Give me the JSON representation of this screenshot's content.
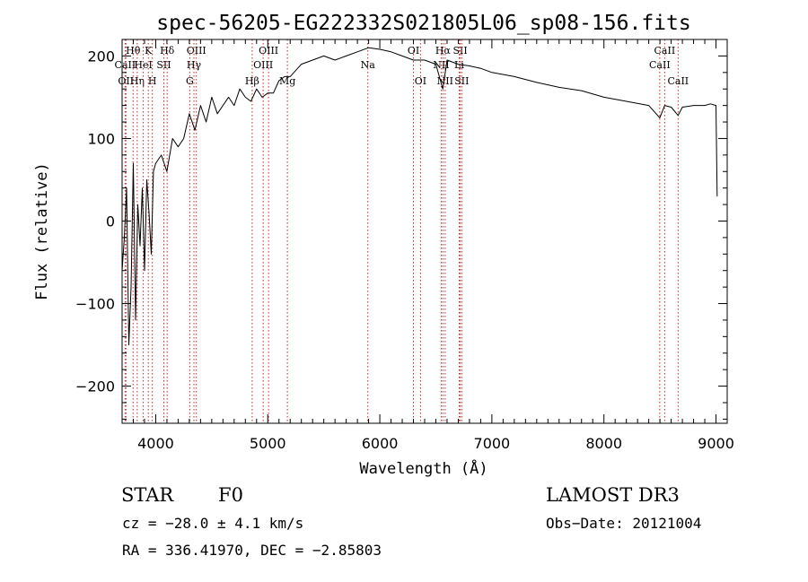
{
  "chart_data": {
    "type": "line",
    "title": "spec-56205-EG222332S021805L06_sp08-156.fits",
    "xlabel": "Wavelength (Å)",
    "ylabel": "Flux (relative)",
    "xlim": [
      3700,
      9100
    ],
    "ylim": [
      -245,
      220
    ],
    "xticks": [
      4000,
      5000,
      6000,
      7000,
      8000,
      9000
    ],
    "yticks": [
      -200,
      -100,
      0,
      100,
      200
    ],
    "series": [
      {
        "name": "flux",
        "color": "#000000",
        "x": [
          3700,
          3720,
          3740,
          3760,
          3780,
          3800,
          3820,
          3840,
          3860,
          3880,
          3900,
          3920,
          3940,
          3960,
          3980,
          4000,
          4050,
          4100,
          4150,
          4200,
          4250,
          4300,
          4350,
          4400,
          4450,
          4500,
          4550,
          4600,
          4650,
          4700,
          4750,
          4800,
          4850,
          4900,
          4950,
          5000,
          5050,
          5100,
          5150,
          5200,
          5300,
          5400,
          5500,
          5600,
          5700,
          5800,
          5900,
          6000,
          6100,
          6200,
          6300,
          6400,
          6500,
          6562,
          6600,
          6700,
          6800,
          6900,
          7000,
          7200,
          7400,
          7600,
          7800,
          8000,
          8200,
          8400,
          8498,
          8542,
          8600,
          8662,
          8700,
          8800,
          8900,
          8950,
          9000,
          9010
        ],
        "y": [
          -60,
          -20,
          40,
          -150,
          -80,
          70,
          -120,
          20,
          -30,
          40,
          -60,
          50,
          10,
          -40,
          60,
          70,
          80,
          60,
          100,
          90,
          100,
          130,
          110,
          140,
          120,
          150,
          130,
          140,
          150,
          140,
          160,
          150,
          145,
          160,
          150,
          155,
          155,
          170,
          175,
          175,
          190,
          195,
          200,
          195,
          200,
          205,
          210,
          208,
          205,
          200,
          195,
          195,
          190,
          160,
          195,
          190,
          188,
          185,
          180,
          175,
          168,
          162,
          158,
          150,
          145,
          140,
          125,
          140,
          138,
          128,
          138,
          140,
          140,
          142,
          140,
          30
        ]
      }
    ],
    "spectral_lines": [
      {
        "name": "Hθ",
        "wavelength": 3798,
        "row": 0
      },
      {
        "name": "CaII",
        "wavelength": 3727,
        "row": 1
      },
      {
        "name": "OII",
        "wavelength": 3734,
        "row": 2
      },
      {
        "name": "Hη",
        "wavelength": 3835,
        "row": 2
      },
      {
        "name": "K",
        "wavelength": 3934,
        "row": 0
      },
      {
        "name": "HeI",
        "wavelength": 3889,
        "row": 1
      },
      {
        "name": "H",
        "wavelength": 3970,
        "row": 2
      },
      {
        "name": "Hδ",
        "wavelength": 4102,
        "row": 0
      },
      {
        "name": "SII",
        "wavelength": 4072,
        "row": 1
      },
      {
        "name": "OIII",
        "wavelength": 4363,
        "row": 0
      },
      {
        "name": "Hγ",
        "wavelength": 4341,
        "row": 1
      },
      {
        "name": "G",
        "wavelength": 4304,
        "row": 2
      },
      {
        "name": "Hβ",
        "wavelength": 4861,
        "row": 2
      },
      {
        "name": "OIII",
        "wavelength": 5007,
        "row": 0
      },
      {
        "name": "OIII",
        "wavelength": 4959,
        "row": 1
      },
      {
        "name": "Mg",
        "wavelength": 5175,
        "row": 2
      },
      {
        "name": "Na",
        "wavelength": 5893,
        "row": 1
      },
      {
        "name": "OI",
        "wavelength": 6300,
        "row": 0
      },
      {
        "name": "OI",
        "wavelength": 6363,
        "row": 2
      },
      {
        "name": "Hα",
        "wavelength": 6563,
        "row": 0
      },
      {
        "name": "NII",
        "wavelength": 6548,
        "row": 1
      },
      {
        "name": "NII",
        "wavelength": 6583,
        "row": 2
      },
      {
        "name": "SII",
        "wavelength": 6717,
        "row": 0
      },
      {
        "name": "Li",
        "wavelength": 6708,
        "row": 1
      },
      {
        "name": "SII",
        "wavelength": 6731,
        "row": 2
      },
      {
        "name": "CaII",
        "wavelength": 8542,
        "row": 0
      },
      {
        "name": "CaII",
        "wavelength": 8498,
        "row": 1
      },
      {
        "name": "CaII",
        "wavelength": 8662,
        "row": 2
      }
    ]
  },
  "info": {
    "class_label": "STAR",
    "subclass": "F0",
    "cz": "cz = −28.0 ± 4.1 km/s",
    "radec": "RA = 336.41970, DEC =  −2.85803",
    "survey": "LAMOST DR3",
    "obs_date": "Obs−Date: 20121004"
  },
  "colors": {
    "line_marker": "#cc2222",
    "spectrum": "#000000"
  }
}
